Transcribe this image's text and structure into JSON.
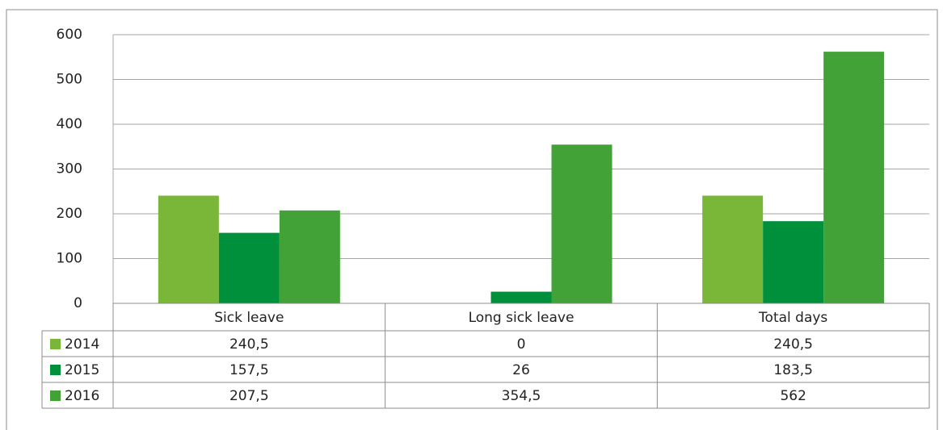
{
  "chart_data": {
    "type": "bar",
    "categories": [
      "Sick leave",
      "Long sick leave",
      "Total days"
    ],
    "series": [
      {
        "name": "2014",
        "color": "#7ab638",
        "values": [
          240.5,
          0,
          240.5
        ],
        "value_labels": [
          "240,5",
          "0",
          "240,5"
        ]
      },
      {
        "name": "2015",
        "color": "#00903c",
        "values": [
          157.5,
          26,
          183.5
        ],
        "value_labels": [
          "157,5",
          "26",
          "183,5"
        ]
      },
      {
        "name": "2016",
        "color": "#42a237",
        "values": [
          207.5,
          354.5,
          562
        ],
        "value_labels": [
          "207,5",
          "354,5",
          "562"
        ]
      }
    ],
    "ylim": [
      0,
      600
    ],
    "yticks": [
      0,
      100,
      200,
      300,
      400,
      500,
      600
    ],
    "grid": true
  }
}
